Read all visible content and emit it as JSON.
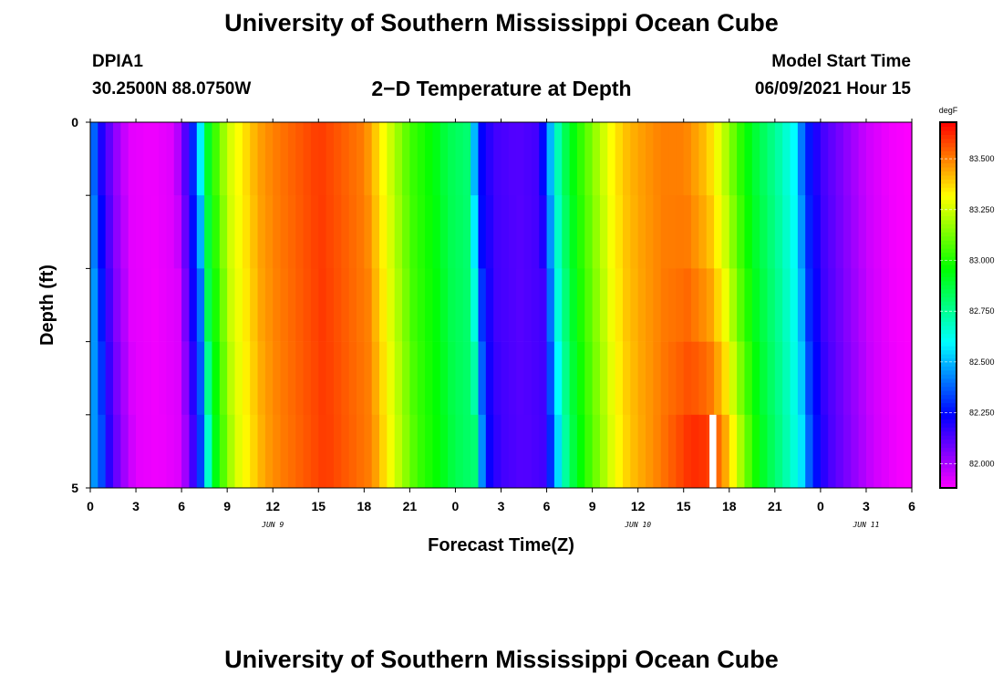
{
  "header": {
    "title": "University of Southern Mississippi Ocean Cube",
    "station": "DPIA1",
    "coords": "30.2500N  88.0750W",
    "plot_title": "2−D Temperature at Depth",
    "start_label": "Model Start Time",
    "start_value": "06/09/2021 Hour 15",
    "footer_title": "University of Southern Mississippi Ocean Cube"
  },
  "chart_data": {
    "type": "heatmap",
    "title": "2−D Temperature at Depth",
    "xlabel": "Forecast Time(Z)",
    "ylabel": "Depth (ft)",
    "units": "degF",
    "x_range_hours": [
      0,
      54
    ],
    "x_tick_labels": [
      "0",
      "3",
      "6",
      "9",
      "12",
      "15",
      "18",
      "21",
      "0",
      "3",
      "6",
      "9",
      "12",
      "15",
      "18",
      "21",
      "0",
      "3",
      "6"
    ],
    "date_labels": [
      {
        "text": "JUN 9",
        "hour": 12
      },
      {
        "text": "JUN 10",
        "hour": 36
      },
      {
        "text": "JUN 11",
        "hour": 51
      }
    ],
    "y_range_ft": [
      0,
      5
    ],
    "y_tick_labels": [
      "0",
      "5"
    ],
    "depth_levels_ft": [
      0,
      1,
      2,
      3,
      4,
      5
    ],
    "colorbar": {
      "label": "degF",
      "min": 81.88,
      "max": 83.68,
      "ticks": [
        82.0,
        82.25,
        82.5,
        82.75,
        83.0,
        83.25,
        83.5
      ],
      "tick_labels": [
        "82.000",
        "82.250",
        "82.500",
        "82.750",
        "83.000",
        "83.250",
        "83.500"
      ]
    },
    "surface_profile": [
      [
        0,
        82.45
      ],
      [
        0.7,
        82.2
      ],
      [
        1.5,
        82.05
      ],
      [
        2.5,
        81.92
      ],
      [
        4,
        81.9
      ],
      [
        5.5,
        81.93
      ],
      [
        6.3,
        82.15
      ],
      [
        7,
        82.4
      ],
      [
        7.5,
        82.85
      ],
      [
        8.2,
        83.05
      ],
      [
        9,
        83.25
      ],
      [
        10,
        83.35
      ],
      [
        11,
        83.45
      ],
      [
        12,
        83.5
      ],
      [
        13.5,
        83.55
      ],
      [
        15,
        83.6
      ],
      [
        16.5,
        83.55
      ],
      [
        18,
        83.5
      ],
      [
        19,
        83.35
      ],
      [
        20,
        83.2
      ],
      [
        21,
        83.05
      ],
      [
        22.5,
        82.95
      ],
      [
        23.5,
        82.85
      ],
      [
        24.8,
        82.8
      ],
      [
        25.2,
        82.5
      ],
      [
        25.6,
        82.25
      ],
      [
        26.5,
        82.15
      ],
      [
        28,
        82.12
      ],
      [
        29.5,
        82.15
      ],
      [
        30,
        82.4
      ],
      [
        30.5,
        82.65
      ],
      [
        31.2,
        82.85
      ],
      [
        32,
        83.0
      ],
      [
        33,
        83.15
      ],
      [
        34,
        83.3
      ],
      [
        35,
        83.4
      ],
      [
        36,
        83.45
      ],
      [
        37.5,
        83.5
      ],
      [
        39,
        83.5
      ],
      [
        40.5,
        83.4
      ],
      [
        41.5,
        83.25
      ],
      [
        42.5,
        83.05
      ],
      [
        43.5,
        82.9
      ],
      [
        45,
        82.75
      ],
      [
        46.2,
        82.6
      ],
      [
        47,
        82.3
      ],
      [
        48,
        82.15
      ],
      [
        49.5,
        82.05
      ],
      [
        51,
        81.95
      ],
      [
        52.5,
        81.9
      ],
      [
        54,
        81.88
      ]
    ],
    "bottom_warm_peak": {
      "hour": 41,
      "temperature": 83.68
    }
  }
}
